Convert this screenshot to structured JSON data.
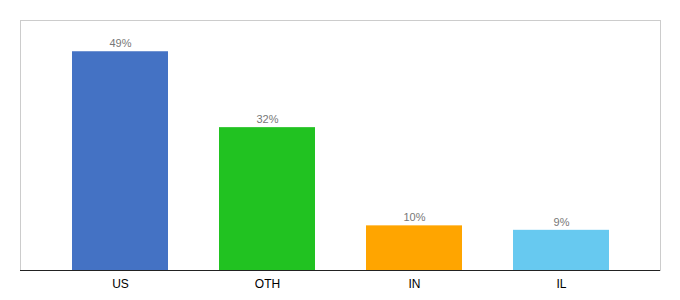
{
  "chart_data": {
    "type": "bar",
    "categories": [
      "US",
      "OTH",
      "IN",
      "IL"
    ],
    "values": [
      49,
      32,
      10,
      9
    ],
    "value_labels": [
      "49%",
      "32%",
      "10%",
      "9%"
    ],
    "colors": [
      "#4472C4",
      "#21C221",
      "#FFA500",
      "#67C9F0"
    ],
    "ylim": [
      0,
      56
    ],
    "data_labels": true,
    "tick_labels": "x"
  }
}
